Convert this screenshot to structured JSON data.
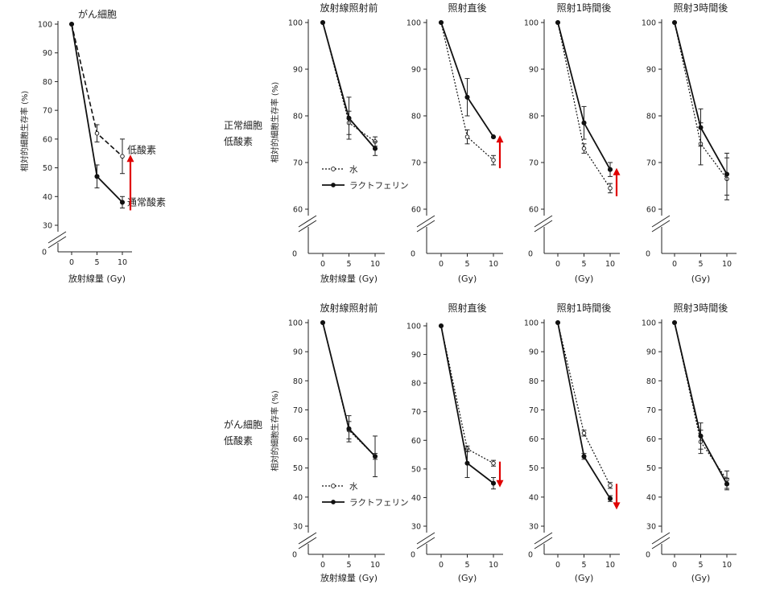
{
  "row_labels": [
    [
      "正常細胞",
      "低酸素"
    ],
    [
      "がん細胞",
      "低酸素"
    ]
  ],
  "colors": {
    "axis": "#222222",
    "line": "#111111",
    "marker_fill": "#ffffff",
    "arrow": "#e00000"
  },
  "chart_data": [
    {
      "type": "line",
      "panel": "left-summary",
      "title": "がん細胞",
      "xlabel": "放射線量 (Gy)",
      "ylabel": "相対的細胞生存率 (%)",
      "ylim": [
        30,
        100
      ],
      "yticks": [
        30,
        40,
        50,
        60,
        70,
        80,
        90,
        100
      ],
      "ybreak_label": "0",
      "x": [
        0,
        5,
        10
      ],
      "series": [
        {
          "name": "低酸素",
          "style": "dashed",
          "values": [
            100,
            62,
            54
          ],
          "err": [
            0,
            3,
            6
          ]
        },
        {
          "name": "通常酸素",
          "style": "solid",
          "values": [
            100,
            47,
            38
          ],
          "err": [
            0,
            4,
            2
          ]
        }
      ],
      "arrow": "up"
    },
    {
      "type": "line",
      "panel": "normal-pre",
      "title": "放射線照射前",
      "xlabel": "放射線量 (Gy)",
      "ylabel": "相対的細胞生存率 (%)",
      "ylim": [
        60,
        100
      ],
      "yticks": [
        60,
        70,
        80,
        90,
        100
      ],
      "ybreak_label": "0",
      "x": [
        0,
        5,
        10
      ],
      "series": [
        {
          "name": "水",
          "style": "dotted",
          "values": [
            100,
            78.5,
            74.5
          ],
          "err": [
            0,
            2.5,
            1
          ]
        },
        {
          "name": "ラクトフェリン",
          "style": "solid",
          "values": [
            100,
            79.5,
            73
          ],
          "err": [
            0,
            4.5,
            1.5
          ]
        }
      ],
      "legend": "bottom-left"
    },
    {
      "type": "line",
      "panel": "normal-imm",
      "title": "照射直後",
      "xlabel": "(Gy)",
      "ylim": [
        60,
        100
      ],
      "yticks": [
        60,
        70,
        80,
        90,
        100
      ],
      "ybreak_label": "0",
      "x": [
        0,
        5,
        10
      ],
      "series": [
        {
          "name": "水",
          "style": "dotted",
          "values": [
            100,
            75.5,
            70.5
          ],
          "err": [
            0,
            1.5,
            1
          ]
        },
        {
          "name": "ラクトフェリン",
          "style": "solid",
          "values": [
            100,
            84,
            75.5
          ],
          "err": [
            0,
            4,
            0
          ]
        }
      ],
      "arrow": "up"
    },
    {
      "type": "line",
      "panel": "normal-1h",
      "title": "照射1時間後",
      "xlabel": "(Gy)",
      "ylim": [
        60,
        100
      ],
      "yticks": [
        60,
        70,
        80,
        90,
        100
      ],
      "ybreak_label": "0",
      "x": [
        0,
        5,
        10
      ],
      "series": [
        {
          "name": "水",
          "style": "dotted",
          "values": [
            100,
            73,
            64.5
          ],
          "err": [
            0,
            1,
            1
          ]
        },
        {
          "name": "ラクトフェリン",
          "style": "solid",
          "values": [
            100,
            78.5,
            68.5
          ],
          "err": [
            0,
            3.5,
            1.5
          ]
        }
      ],
      "arrow": "up"
    },
    {
      "type": "line",
      "panel": "normal-3h",
      "title": "照射3時間後",
      "xlabel": "(Gy)",
      "ylim": [
        60,
        100
      ],
      "yticks": [
        60,
        70,
        80,
        90,
        100
      ],
      "ybreak_label": "0",
      "x": [
        0,
        5,
        10
      ],
      "series": [
        {
          "name": "水",
          "style": "dotted",
          "values": [
            100,
            74,
            66.5
          ],
          "err": [
            0,
            4.5,
            4.5
          ]
        },
        {
          "name": "ラクトフェリン",
          "style": "solid",
          "values": [
            100,
            77.5,
            67.5
          ],
          "err": [
            0,
            4,
            4.5
          ]
        }
      ]
    },
    {
      "type": "line",
      "panel": "cancer-pre",
      "title": "放射線照射前",
      "xlabel": "放射線量 (Gy)",
      "ylabel": "相対的細胞生存率 (%)",
      "ylim": [
        30,
        100
      ],
      "yticks": [
        30,
        40,
        50,
        60,
        70,
        80,
        90,
        100
      ],
      "ybreak_label": "0",
      "x": [
        0,
        5,
        10
      ],
      "series": [
        {
          "name": "水",
          "style": "dotted",
          "values": [
            100,
            63,
            54
          ],
          "err": [
            0,
            3,
            1
          ]
        },
        {
          "name": "ラクトフェリン",
          "style": "solid",
          "values": [
            100,
            63.5,
            54
          ],
          "err": [
            0,
            4.5,
            7
          ]
        }
      ],
      "legend": "bottom-left"
    },
    {
      "type": "line",
      "panel": "cancer-imm",
      "title": "照射直後",
      "xlabel": "(Gy)",
      "ylim": [
        30,
        100
      ],
      "yticks": [
        30,
        40,
        50,
        60,
        70,
        80,
        90,
        100
      ],
      "ybreak_label": "0",
      "x": [
        0,
        5,
        10
      ],
      "series": [
        {
          "name": "水",
          "style": "dotted",
          "values": [
            100,
            57,
            52
          ],
          "err": [
            0,
            1,
            1
          ]
        },
        {
          "name": "ラクトフェリン",
          "style": "solid",
          "values": [
            100,
            52,
            45
          ],
          "err": [
            0,
            5,
            2
          ]
        }
      ],
      "arrow": "down"
    },
    {
      "type": "line",
      "panel": "cancer-1h",
      "title": "照射1時間後",
      "xlabel": "(Gy)",
      "ylim": [
        30,
        100
      ],
      "yticks": [
        30,
        40,
        50,
        60,
        70,
        80,
        90,
        100
      ],
      "ybreak_label": "0",
      "x": [
        0,
        5,
        10
      ],
      "series": [
        {
          "name": "水",
          "style": "dotted",
          "values": [
            100,
            62,
            44
          ],
          "err": [
            0,
            1,
            1
          ]
        },
        {
          "name": "ラクトフェリン",
          "style": "solid",
          "values": [
            100,
            54,
            39.5
          ],
          "err": [
            0,
            1,
            1
          ]
        }
      ],
      "arrow": "down"
    },
    {
      "type": "line",
      "panel": "cancer-3h",
      "title": "照射3時間後",
      "xlabel": "(Gy)",
      "ylim": [
        30,
        100
      ],
      "yticks": [
        30,
        40,
        50,
        60,
        70,
        80,
        90,
        100
      ],
      "ybreak_label": "0",
      "x": [
        0,
        5,
        10
      ],
      "series": [
        {
          "name": "水",
          "style": "dotted",
          "values": [
            100,
            59,
            46
          ],
          "err": [
            0,
            4,
            3
          ]
        },
        {
          "name": "ラクトフェリン",
          "style": "solid",
          "values": [
            100,
            61,
            44.5
          ],
          "err": [
            0,
            4.5,
            2
          ]
        }
      ]
    }
  ]
}
